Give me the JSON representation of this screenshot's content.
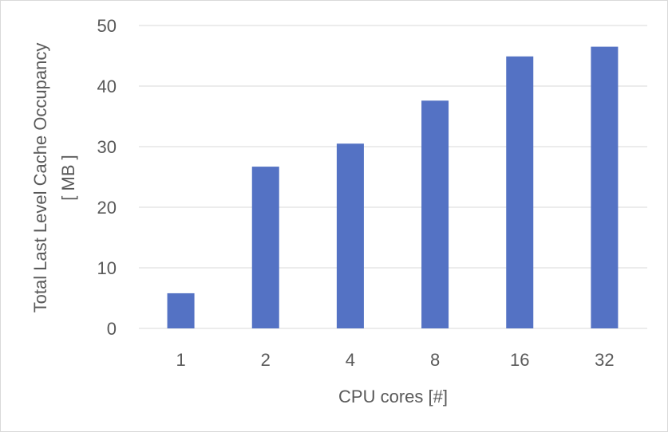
{
  "chart_data": {
    "type": "bar",
    "title": "",
    "categories": [
      "1",
      "2",
      "4",
      "8",
      "16",
      "32"
    ],
    "series": [
      {
        "name": "Total Last Level Cache Occupancy",
        "color": "#5472C4",
        "values": [
          5.8,
          26.7,
          30.5,
          37.6,
          44.9,
          46.5
        ]
      }
    ],
    "xlabel": "CPU cores [#]",
    "ylabel_lines": [
      "Total Last Level Cache Occupancy",
      "[ MB ]"
    ],
    "ylim": [
      0,
      50
    ],
    "yticks": [
      0,
      10,
      20,
      30,
      40,
      50
    ],
    "grid": true,
    "legend": "none"
  }
}
